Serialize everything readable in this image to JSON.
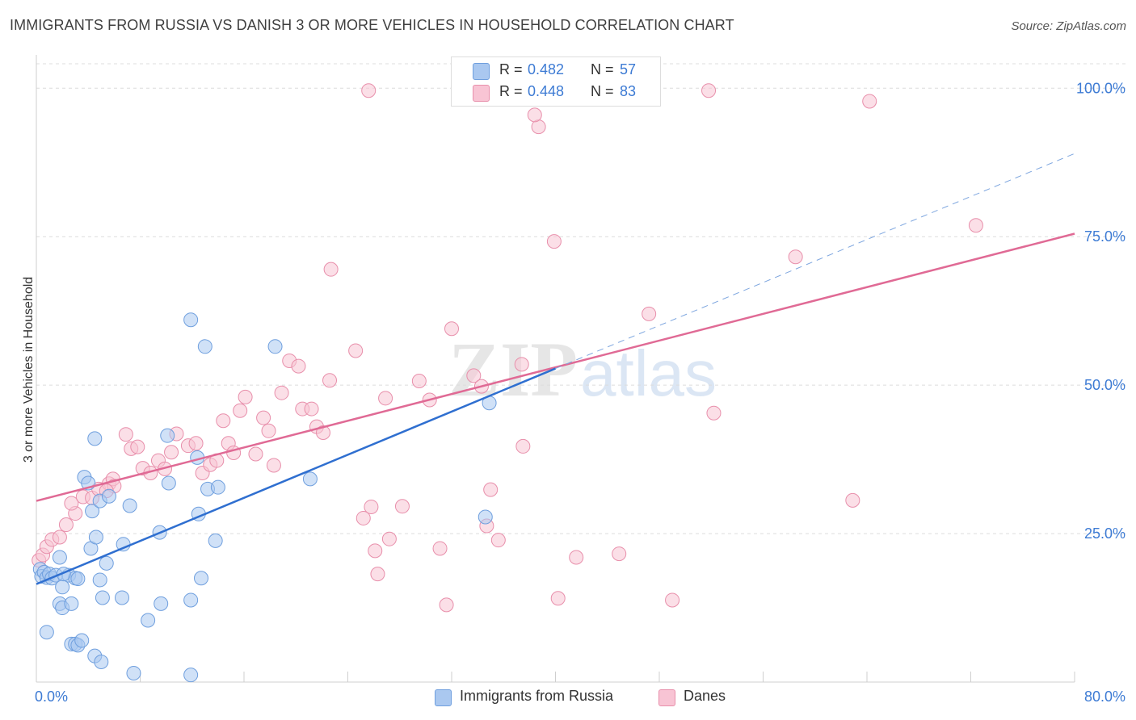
{
  "title": "IMMIGRANTS FROM RUSSIA VS DANISH 3 OR MORE VEHICLES IN HOUSEHOLD CORRELATION CHART",
  "source": "Source: ZipAtlas.com",
  "watermark": {
    "zip": "ZIP",
    "atlas": "atlas"
  },
  "legend": {
    "r_label": "R =",
    "n_label": "N =",
    "rows": [
      {
        "r": "0.482",
        "n": "57",
        "fill": "#aac8f0",
        "stroke": "#6f9fde"
      },
      {
        "r": "0.448",
        "n": "83",
        "fill": "#f8c4d4",
        "stroke": "#e88fab"
      }
    ]
  },
  "bottom_legend": {
    "russia": "Immigrants from Russia",
    "danes": "Danes"
  },
  "chart_data": {
    "type": "scatter",
    "xlim": [
      0,
      80
    ],
    "ylim": [
      0,
      100
    ],
    "x_tick_labels": [
      "0.0%",
      "80.0%"
    ],
    "y_tick_labels": [
      "25.0%",
      "50.0%",
      "75.0%",
      "100.0%"
    ],
    "y_ticks": [
      25,
      50,
      75,
      100
    ],
    "ylabel": "3 or more Vehicles in Household",
    "grid": true,
    "colors": {
      "russia_fill": "#aac8f0",
      "russia_stroke": "#6f9fde",
      "russia_line": "#2f6fd0",
      "danes_fill": "#f8c4d4",
      "danes_stroke": "#e88fab",
      "danes_line": "#e06a95",
      "tick_text": "#3d7bd4"
    },
    "series": [
      {
        "name": "Immigrants from Russia",
        "points": [
          [
            0.3,
            19
          ],
          [
            0.4,
            17.8
          ],
          [
            0.6,
            18.5
          ],
          [
            0.8,
            17.6
          ],
          [
            1.0,
            18.2
          ],
          [
            1.2,
            17.5
          ],
          [
            1.5,
            18
          ],
          [
            1.8,
            21
          ],
          [
            2.0,
            16
          ],
          [
            2.5,
            18
          ],
          [
            3.0,
            17.5
          ],
          [
            3.2,
            17.4
          ],
          [
            0.8,
            8.4
          ],
          [
            1.8,
            13.2
          ],
          [
            2.0,
            12.5
          ],
          [
            2.7,
            13.2
          ],
          [
            2.7,
            6.4
          ],
          [
            3.0,
            6.4
          ],
          [
            3.2,
            6.2
          ],
          [
            3.5,
            7
          ],
          [
            4.5,
            4.4
          ],
          [
            5.0,
            3.4
          ],
          [
            7.5,
            1.5
          ],
          [
            11.9,
            1.2
          ],
          [
            4.2,
            22.5
          ],
          [
            4.6,
            24.4
          ],
          [
            5.4,
            20
          ],
          [
            6.7,
            23.2
          ],
          [
            7.2,
            29.7
          ],
          [
            4.3,
            28.8
          ],
          [
            4.9,
            30.5
          ],
          [
            5.6,
            31.3
          ],
          [
            3.7,
            34.5
          ],
          [
            4.0,
            33.5
          ],
          [
            4.5,
            41
          ],
          [
            10.1,
            41.5
          ],
          [
            12.4,
            37.8
          ],
          [
            10.2,
            33.5
          ],
          [
            13.2,
            32.5
          ],
          [
            14.0,
            32.8
          ],
          [
            9.5,
            25.2
          ],
          [
            13.8,
            23.8
          ],
          [
            12.5,
            28.3
          ],
          [
            6.6,
            14.2
          ],
          [
            5.1,
            14.2
          ],
          [
            9.6,
            13.2
          ],
          [
            11.9,
            13.8
          ],
          [
            8.6,
            10.4
          ],
          [
            12.7,
            17.5
          ],
          [
            11.9,
            61
          ],
          [
            13.0,
            56.5
          ],
          [
            18.4,
            56.5
          ],
          [
            21.1,
            34.2
          ],
          [
            34.9,
            47
          ],
          [
            34.6,
            27.8
          ],
          [
            4.9,
            17.2
          ],
          [
            2.1,
            18.2
          ]
        ]
      },
      {
        "name": "Danes",
        "points": [
          [
            0.2,
            20.5
          ],
          [
            0.5,
            21.4
          ],
          [
            0.8,
            22.8
          ],
          [
            1.2,
            24
          ],
          [
            1.8,
            24.4
          ],
          [
            2.3,
            26.5
          ],
          [
            3.0,
            28.4
          ],
          [
            2.7,
            30.1
          ],
          [
            3.6,
            31.2
          ],
          [
            4.3,
            31
          ],
          [
            4.8,
            32.5
          ],
          [
            5.6,
            33.4
          ],
          [
            5.9,
            34.2
          ],
          [
            6.0,
            33
          ],
          [
            5.4,
            32.2
          ],
          [
            6.9,
            41.7
          ],
          [
            7.3,
            39.3
          ],
          [
            7.8,
            39.6
          ],
          [
            8.2,
            36
          ],
          [
            8.8,
            35.2
          ],
          [
            9.4,
            37.3
          ],
          [
            9.9,
            35.9
          ],
          [
            10.4,
            38.7
          ],
          [
            10.8,
            41.8
          ],
          [
            11.7,
            39.8
          ],
          [
            12.3,
            40.2
          ],
          [
            12.8,
            35.2
          ],
          [
            13.4,
            36.6
          ],
          [
            13.9,
            37.3
          ],
          [
            14.4,
            44
          ],
          [
            14.8,
            40.2
          ],
          [
            15.2,
            38.6
          ],
          [
            15.7,
            45.7
          ],
          [
            16.1,
            48
          ],
          [
            16.9,
            38.4
          ],
          [
            17.5,
            44.5
          ],
          [
            17.9,
            42.3
          ],
          [
            18.3,
            36.5
          ],
          [
            18.9,
            48.7
          ],
          [
            19.5,
            54.1
          ],
          [
            20.2,
            53.2
          ],
          [
            20.5,
            46
          ],
          [
            21.2,
            46
          ],
          [
            21.6,
            43
          ],
          [
            22.1,
            42
          ],
          [
            22.6,
            50.8
          ],
          [
            22.7,
            69.5
          ],
          [
            24.6,
            55.8
          ],
          [
            25.2,
            27.6
          ],
          [
            25.8,
            29.5
          ],
          [
            26.1,
            22.1
          ],
          [
            26.9,
            47.8
          ],
          [
            27.2,
            24.1
          ],
          [
            26.3,
            18.2
          ],
          [
            28.2,
            29.6
          ],
          [
            29.5,
            50.7
          ],
          [
            30.3,
            47.5
          ],
          [
            31.1,
            22.5
          ],
          [
            31.6,
            13
          ],
          [
            32.0,
            59.5
          ],
          [
            33.7,
            51.6
          ],
          [
            34.3,
            49.8
          ],
          [
            35.0,
            32.4
          ],
          [
            35.6,
            23.9
          ],
          [
            37.4,
            53.5
          ],
          [
            37.5,
            39.7
          ],
          [
            38.7,
            93.5
          ],
          [
            39.9,
            74.2
          ],
          [
            40.2,
            14.1
          ],
          [
            41.6,
            21
          ],
          [
            44.9,
            21.6
          ],
          [
            47.2,
            62
          ],
          [
            49.0,
            13.8
          ],
          [
            51.8,
            99.6
          ],
          [
            52.2,
            45.3
          ],
          [
            58.5,
            71.6
          ],
          [
            62.9,
            30.6
          ],
          [
            64.2,
            97.8
          ],
          [
            72.4,
            76.9
          ],
          [
            42.0,
            99.6
          ],
          [
            25.6,
            99.6
          ],
          [
            38.4,
            95.5
          ],
          [
            34.7,
            26.3
          ]
        ]
      }
    ],
    "regression": [
      {
        "name": "Immigrants from Russia",
        "x0": 0,
        "y0": 16.5,
        "x1": 40,
        "y1": 52.8,
        "dash_x_end": 80,
        "dash_y_end": 89
      },
      {
        "name": "Danes",
        "x0": 0,
        "y0": 30.5,
        "x1": 80,
        "y1": 75.5
      }
    ]
  }
}
